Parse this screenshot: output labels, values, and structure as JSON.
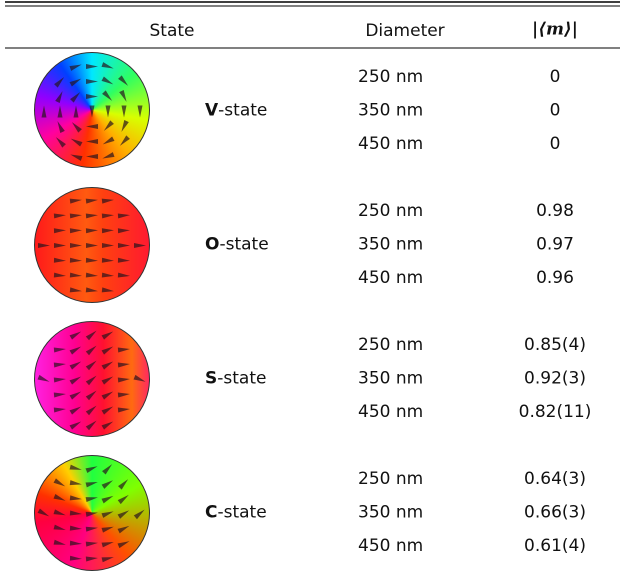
{
  "table": {
    "header": [
      "State",
      "Diameter",
      "|⟨m⟩|"
    ],
    "groups": [
      {
        "letter": "V",
        "suffix": "-state",
        "rows": [
          [
            "250 nm",
            "0"
          ],
          [
            "350 nm",
            "0"
          ],
          [
            "450 nm",
            "0"
          ]
        ]
      },
      {
        "letter": "O",
        "suffix": "-state",
        "rows": [
          [
            "250 nm",
            "0.98"
          ],
          [
            "350 nm",
            "0.97"
          ],
          [
            "450 nm",
            "0.96"
          ]
        ]
      },
      {
        "letter": "S",
        "suffix": "-state",
        "rows": [
          [
            "250 nm",
            "0.85(4)"
          ],
          [
            "350 nm",
            "0.92(3)"
          ],
          [
            "450 nm",
            "0.82(11)"
          ]
        ]
      },
      {
        "letter": "C",
        "suffix": "-state",
        "rows": [
          [
            "250 nm",
            "0.64(3)"
          ],
          [
            "350 nm",
            "0.66(3)"
          ],
          [
            "450 nm",
            "0.61(4)"
          ]
        ]
      }
    ]
  }
}
